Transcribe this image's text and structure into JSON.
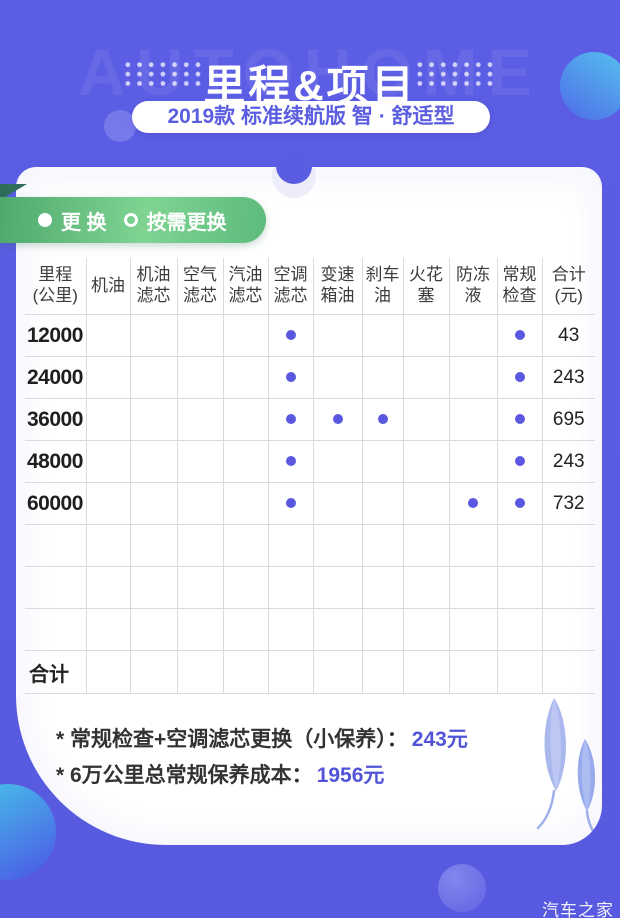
{
  "page": {
    "watermark": "AUTOHOME",
    "title": "里程&项目",
    "subtitle": "2019款 标准续航版 智 · 舒适型",
    "brand": "汽车之家"
  },
  "legend": {
    "replace": "更 换",
    "as_needed": "按需更换"
  },
  "table": {
    "columns": [
      "里程\n(公里)",
      "机油",
      "机油\n滤芯",
      "空气\n滤芯",
      "汽油\n滤芯",
      "空调\n滤芯",
      "变速\n箱油",
      "刹车\n油",
      "火花\n塞",
      "防冻\n液",
      "常规\n检查",
      "合计\n(元)"
    ],
    "rows": [
      {
        "mileage": "12000",
        "services": [
          0,
          0,
          0,
          0,
          1,
          0,
          0,
          0,
          0,
          1
        ],
        "total": "43"
      },
      {
        "mileage": "24000",
        "services": [
          0,
          0,
          0,
          0,
          1,
          0,
          0,
          0,
          0,
          1
        ],
        "total": "243"
      },
      {
        "mileage": "36000",
        "services": [
          0,
          0,
          0,
          0,
          1,
          1,
          1,
          0,
          0,
          1
        ],
        "total": "695"
      },
      {
        "mileage": "48000",
        "services": [
          0,
          0,
          0,
          0,
          1,
          0,
          0,
          0,
          0,
          1
        ],
        "total": "243"
      },
      {
        "mileage": "60000",
        "services": [
          0,
          0,
          0,
          0,
          1,
          0,
          0,
          0,
          1,
          1
        ],
        "total": "732"
      }
    ],
    "empty_rows": 3,
    "summary_label": "合计"
  },
  "notes": [
    {
      "label": "* 常规检查+空调滤芯更换（小保养）：",
      "value": "243元"
    },
    {
      "label": "* 6万公里总常规保养成本：",
      "value": "1956元"
    }
  ],
  "colors": {
    "background": "#5a5ce2",
    "dot": "#5a58e0",
    "accent": "#5254d8",
    "ribbon_green_1": "#4fa96e",
    "ribbon_green_2": "#7fd492"
  }
}
